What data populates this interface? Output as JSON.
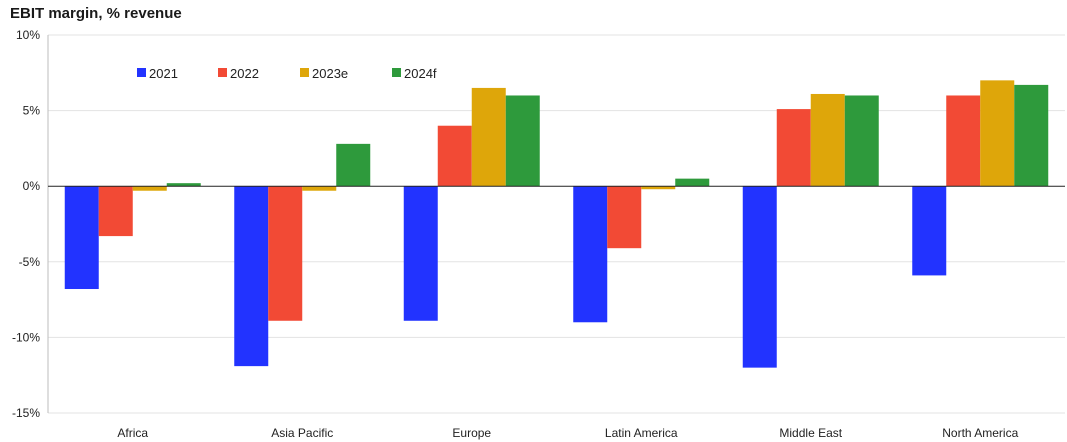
{
  "chart_data": {
    "type": "bar",
    "title": "EBIT margin, % revenue",
    "xlabel": "",
    "ylabel": "",
    "ylim": [
      -15,
      10
    ],
    "yticks": [
      10,
      5,
      0,
      -5,
      -10,
      -15
    ],
    "ytick_labels": [
      "10%",
      "5%",
      "0%",
      "-5%",
      "-10%",
      "-15%"
    ],
    "categories": [
      "Africa",
      "Asia Pacific",
      "Europe",
      "Latin America",
      "Middle East",
      "North America"
    ],
    "series": [
      {
        "name": "2021",
        "color": "#2233ff",
        "values": [
          -6.8,
          -11.9,
          -8.9,
          -9.0,
          -12.0,
          -5.9
        ]
      },
      {
        "name": "2022",
        "color": "#f24a35",
        "values": [
          -3.3,
          -8.9,
          4.0,
          -4.1,
          5.1,
          6.0
        ]
      },
      {
        "name": "2023e",
        "color": "#dea60a",
        "values": [
          -0.3,
          -0.3,
          6.5,
          -0.2,
          6.1,
          7.0
        ]
      },
      {
        "name": "2024f",
        "color": "#2e9a3c",
        "values": [
          0.2,
          2.8,
          6.0,
          0.5,
          6.0,
          6.7
        ]
      }
    ],
    "grid": true,
    "legend_position": "top-left"
  }
}
